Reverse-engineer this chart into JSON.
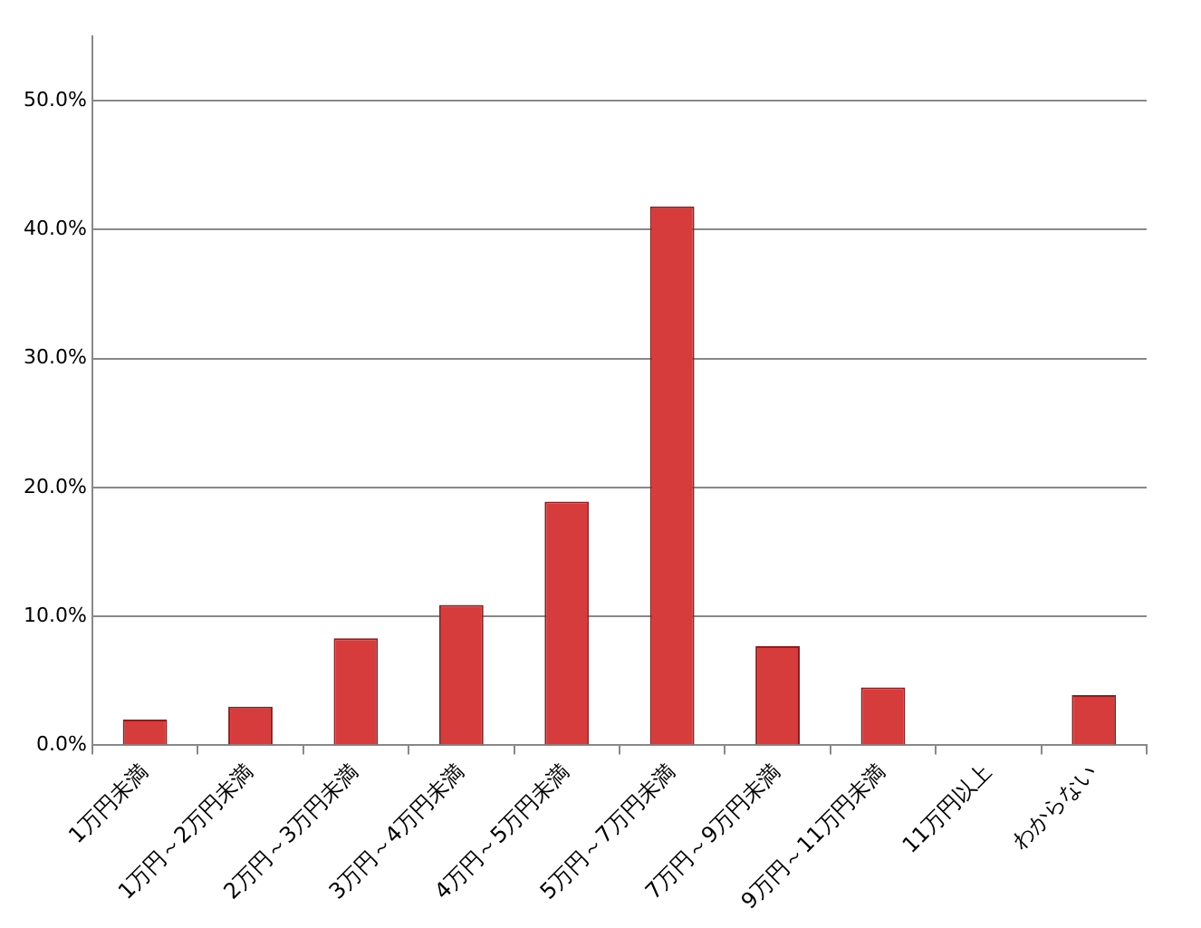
{
  "chart_data": {
    "type": "bar",
    "categories": [
      "1万円未満",
      "1万円～2万円未満",
      "2万円～3万円未満",
      "3万円～4万円未満",
      "4万円～5万円未満",
      "5万円～7万円未満",
      "7万円～9万円未満",
      "9万円～11万円未満",
      "11万円以上",
      "わからない"
    ],
    "values": [
      2.0,
      3.0,
      8.3,
      10.9,
      18.9,
      41.8,
      7.7,
      4.5,
      0,
      3.9
    ],
    "color": "#d63c3c",
    "ylim": [
      0,
      55
    ],
    "yticks": [
      {
        "value": 0,
        "label": "0.0%"
      },
      {
        "value": 10,
        "label": "10.0%"
      },
      {
        "value": 20,
        "label": "20.0%"
      },
      {
        "value": 30,
        "label": "30.0%"
      },
      {
        "value": 40,
        "label": "40.0%"
      },
      {
        "value": 50,
        "label": "50.0%"
      }
    ],
    "grid": "y",
    "legend": false
  }
}
